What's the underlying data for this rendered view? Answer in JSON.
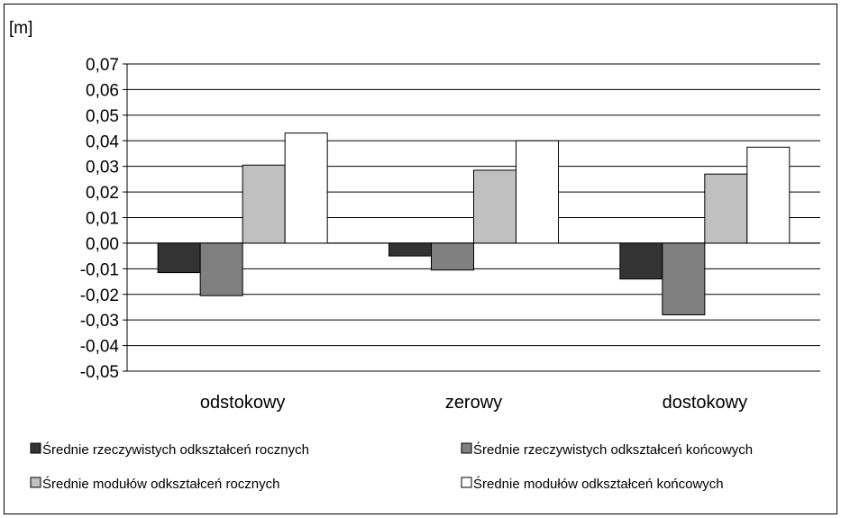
{
  "chart_data": {
    "type": "bar",
    "unit_label": "[m]",
    "categories": [
      "odstokowy",
      "zerowy",
      "dostokowy"
    ],
    "ylim": [
      -0.05,
      0.07
    ],
    "yticks": [
      "0,07",
      "0,06",
      "0,05",
      "0,04",
      "0,03",
      "0,02",
      "0,01",
      "0,00",
      "-0,01",
      "-0,02",
      "-0,03",
      "-0,04",
      "-0,05"
    ],
    "grid": true,
    "legend_position": "bottom",
    "series": [
      {
        "name": "Średnie rzeczywistych odkształceń rocznych",
        "color": "#333333",
        "values": [
          -0.0115,
          -0.005,
          -0.014
        ]
      },
      {
        "name": "Średnie rzeczywistych odkształceń końcowych",
        "color": "#808080",
        "values": [
          -0.0205,
          -0.0105,
          -0.028
        ]
      },
      {
        "name": "Średnie modułów odkształceń rocznych",
        "color": "#c0c0c0",
        "values": [
          0.0305,
          0.0285,
          0.027
        ]
      },
      {
        "name": "Średnie modułów odkształceń końcowych",
        "color": "#ffffff",
        "values": [
          0.043,
          0.04,
          0.0375
        ]
      }
    ]
  }
}
